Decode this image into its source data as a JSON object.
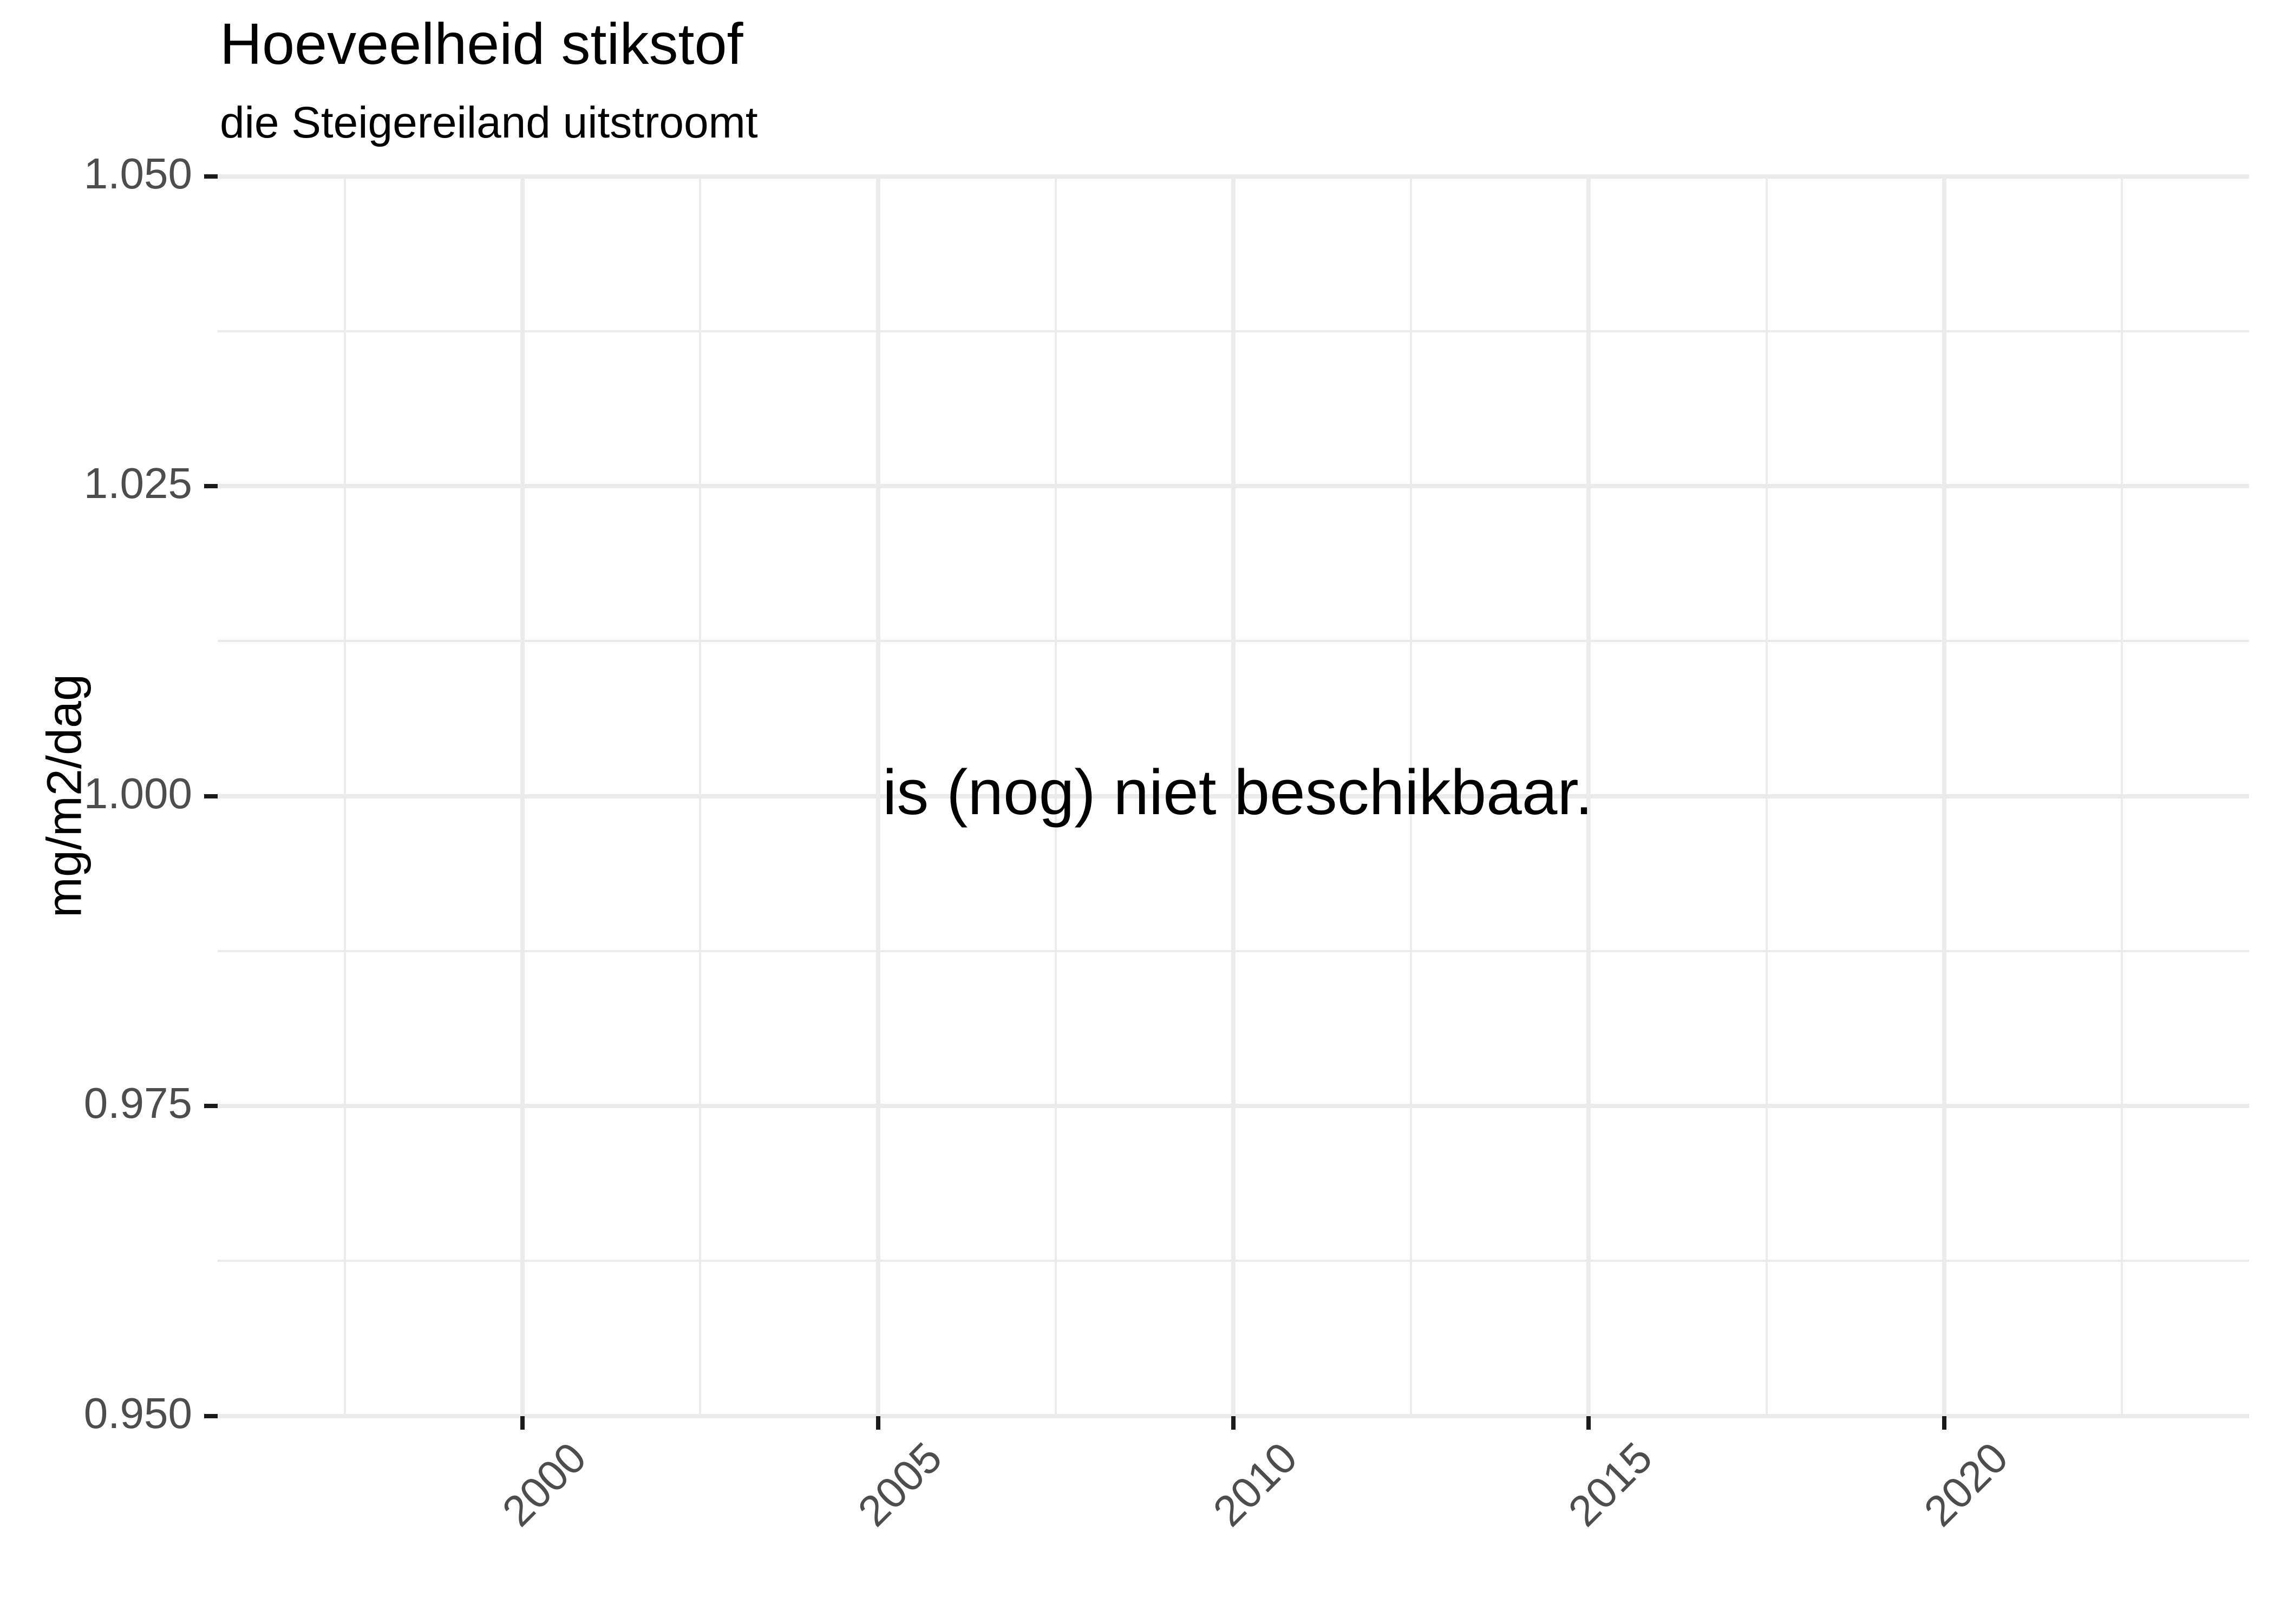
{
  "chart_data": {
    "type": "line",
    "title": "Hoeveelheid stikstof",
    "subtitle": "die Steigereiland uitstroomt",
    "xlabel": "",
    "ylabel": "mg/m2/dag",
    "series": [],
    "annotation": {
      "text": "is (nog) niet beschikbaar.",
      "x": 2010,
      "y": 1.0
    },
    "x_domain": [
      1995.71,
      2024.29
    ],
    "y_domain": [
      0.95,
      1.05
    ],
    "x_ticks": [
      {
        "v": 2000,
        "label": "2000"
      },
      {
        "v": 2005,
        "label": "2005"
      },
      {
        "v": 2010,
        "label": "2010"
      },
      {
        "v": 2015,
        "label": "2015"
      },
      {
        "v": 2020,
        "label": "2020"
      }
    ],
    "y_ticks": [
      {
        "v": 0.95,
        "label": "0.950"
      },
      {
        "v": 0.975,
        "label": "0.975"
      },
      {
        "v": 1.0,
        "label": "1.000"
      },
      {
        "v": 1.025,
        "label": "1.025"
      },
      {
        "v": 1.05,
        "label": "1.050"
      }
    ],
    "x_minor": [
      1997.5,
      2002.5,
      2007.5,
      2012.5,
      2017.5,
      2022.5
    ],
    "y_minor": [
      0.9625,
      0.9875,
      1.0125,
      1.0375
    ],
    "grid": {
      "major": true,
      "minor": true
    },
    "legend": false,
    "colors": {
      "background": "#FFFFFF",
      "grid": "#EBEBEB",
      "tick_mark": "#1A1A1A",
      "tick_label": "#4D4D4D",
      "text": "#000000"
    }
  }
}
